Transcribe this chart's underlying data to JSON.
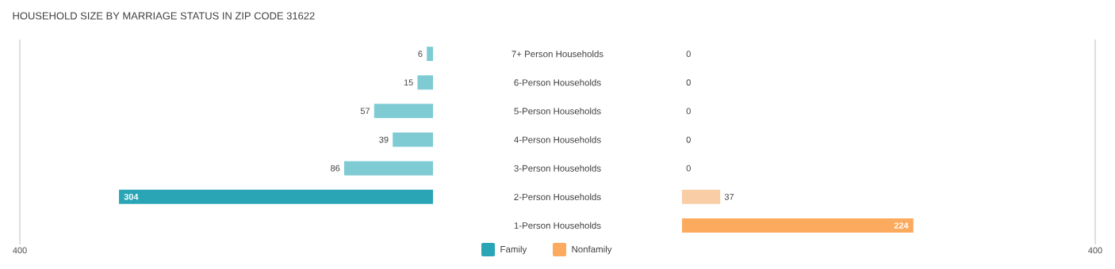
{
  "chart_data": [
    {
      "type": "bar",
      "orientation": "horizontal",
      "title": "HOUSEHOLD SIZE BY MARRIAGE STATUS IN ZIP CODE 31622",
      "categories": [
        "7+ Person Households",
        "6-Person Households",
        "5-Person Households",
        "4-Person Households",
        "3-Person Households",
        "2-Person Households",
        "1-Person Households"
      ],
      "series": [
        {
          "name": "Family",
          "color": "#2aa5b5",
          "colors": [
            "#7ecbd3",
            "#7ecbd3",
            "#7ecbd3",
            "#7ecbd3",
            "#7ecbd3",
            "#2aa5b5",
            "#7ecbd3"
          ],
          "values": [
            6,
            15,
            57,
            39,
            86,
            304,
            null
          ]
        }
      ],
      "xlim": [
        400,
        0
      ],
      "xticks": [
        400
      ],
      "data_labels": true,
      "legend": "bottom"
    },
    {
      "type": "bar",
      "orientation": "horizontal",
      "series": [
        {
          "name": "Nonfamily",
          "color": "#fbaa5e",
          "colors": [
            "#f9cda6",
            "#f9cda6",
            "#f9cda6",
            "#f9cda6",
            "#f9cda6",
            "#f9cda6",
            "#fbaa5e"
          ],
          "values": [
            0,
            0,
            0,
            0,
            0,
            37,
            224
          ]
        }
      ],
      "xlim": [
        0,
        400
      ],
      "xticks": [
        400
      ],
      "data_labels": true,
      "legend": "bottom",
      "tick_labels": "x"
    }
  ]
}
